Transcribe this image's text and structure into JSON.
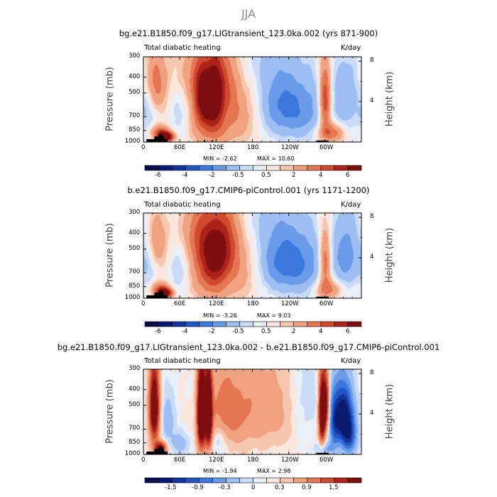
{
  "main_title": "JJA",
  "colors": {
    "scale": [
      "#0a1a6e",
      "#14349a",
      "#2256c4",
      "#3a78de",
      "#6a9be9",
      "#9cbef2",
      "#c9dbf6",
      "#e8eff9",
      "#fbe7dd",
      "#f7c6ae",
      "#f0a17f",
      "#e47652",
      "#cf4a2e",
      "#ad231b",
      "#7e0e10"
    ],
    "topography": "#000000",
    "frame": "#000000"
  },
  "chart_data": [
    {
      "type": "heatmap",
      "title": "bg.e21.B1850.f09_g17.LIGtransient_123.0ka.002 (yrs 871-900)",
      "left_subtitle": "Total diabatic heating",
      "right_subtitle": "K/day",
      "ylabel": "Pressure  (mb)",
      "y2label": "Height  (km)",
      "x_ticks": [
        "0",
        "60E",
        "120E",
        "180",
        "120W",
        "60W"
      ],
      "x_tick_lons": [
        0,
        60,
        120,
        180,
        240,
        300
      ],
      "xlim": [
        0,
        360
      ],
      "y_ticks": [
        "300",
        "400",
        "500",
        "700",
        "850",
        "1000"
      ],
      "y_tick_values": [
        300,
        400,
        500,
        700,
        850,
        1000
      ],
      "ylim": [
        1000,
        300
      ],
      "y2_ticks": [
        "8",
        "4"
      ],
      "y2_tick_values_km": [
        8,
        4
      ],
      "min_text": "MIN =    -2.62",
      "max_text": "MAX =     10.60",
      "levels": [
        -6,
        -5,
        -4,
        -3,
        -2,
        -1,
        -0.5,
        0,
        0.5,
        1,
        2,
        3,
        4,
        5,
        6
      ],
      "colorbar_labels": [
        "-6",
        "-4",
        "-2",
        "-0.5",
        "0.5",
        "2",
        "4",
        "6"
      ],
      "colorbar_label_levels": [
        -6,
        -4,
        -2,
        -0.5,
        0.5,
        2,
        4,
        6
      ],
      "features": [
        {
          "lon": 37,
          "p": 930,
          "amp": 7,
          "sx": 9,
          "sy": 45
        },
        {
          "lon": 27,
          "p": 870,
          "amp": 3,
          "sx": 10,
          "sy": 60
        },
        {
          "lon": 20,
          "p": 430,
          "amp": 2.5,
          "sx": 14,
          "sy": 140
        },
        {
          "lon": 100,
          "p": 520,
          "amp": 5.5,
          "sx": 12,
          "sy": 160
        },
        {
          "lon": 120,
          "p": 480,
          "amp": 4.5,
          "sx": 10,
          "sy": 180
        },
        {
          "lon": 112,
          "p": 800,
          "amp": 2.5,
          "sx": 22,
          "sy": 180
        },
        {
          "lon": 140,
          "p": 430,
          "amp": 2,
          "sx": 14,
          "sy": 160
        },
        {
          "lon": 80,
          "p": 380,
          "amp": 1.6,
          "sx": 20,
          "sy": 120
        },
        {
          "lon": 160,
          "p": 700,
          "amp": 1.5,
          "sx": 20,
          "sy": 200
        },
        {
          "lon": 300,
          "p": 560,
          "amp": 4.5,
          "sx": 7,
          "sy": 190
        },
        {
          "lon": 310,
          "p": 880,
          "amp": 3,
          "sx": 15,
          "sy": 80
        },
        {
          "lon": 225,
          "p": 580,
          "amp": -2.4,
          "sx": 24,
          "sy": 200
        },
        {
          "lon": 265,
          "p": 640,
          "amp": -2.2,
          "sx": 28,
          "sy": 210
        },
        {
          "lon": 335,
          "p": 530,
          "amp": -1.8,
          "sx": 16,
          "sy": 200
        },
        {
          "lon": 7,
          "p": 620,
          "amp": -1.2,
          "sx": 9,
          "sy": 170
        },
        {
          "lon": 60,
          "p": 620,
          "amp": -0.8,
          "sx": 12,
          "sy": 200
        },
        {
          "lon": 195,
          "p": 330,
          "amp": -0.6,
          "sx": 25,
          "sy": 70
        }
      ],
      "topography": [
        {
          "lon0": 5,
          "lon1": 40,
          "p_top": 960
        },
        {
          "lon0": 18,
          "lon1": 34,
          "p_top": 925
        },
        {
          "lon0": 25,
          "lon1": 32,
          "p_top": 900
        },
        {
          "lon0": 100,
          "lon1": 102,
          "p_top": 970
        },
        {
          "lon0": 113,
          "lon1": 115,
          "p_top": 970
        },
        {
          "lon0": 286,
          "lon1": 306,
          "p_top": 978
        }
      ]
    },
    {
      "type": "heatmap",
      "title": "b.e21.B1850.f09_g17.CMIP6-piControl.001 (yrs 1171-1200)",
      "left_subtitle": "Total diabatic heating",
      "right_subtitle": "K/day",
      "ylabel": "Pressure  (mb)",
      "y2label": "Height  (km)",
      "x_ticks": [
        "0",
        "60E",
        "120E",
        "180",
        "120W",
        "60W"
      ],
      "x_tick_lons": [
        0,
        60,
        120,
        180,
        240,
        300
      ],
      "xlim": [
        0,
        360
      ],
      "y_ticks": [
        "300",
        "400",
        "500",
        "700",
        "850",
        "1000"
      ],
      "y_tick_values": [
        300,
        400,
        500,
        700,
        850,
        1000
      ],
      "ylim": [
        1000,
        300
      ],
      "y2_ticks": [
        "8",
        "4"
      ],
      "y2_tick_values_km": [
        8,
        4
      ],
      "min_text": "MIN =    -3.26",
      "max_text": "MAX =     9.03",
      "levels": [
        -6,
        -5,
        -4,
        -3,
        -2,
        -1,
        -0.5,
        0,
        0.5,
        1,
        2,
        3,
        4,
        5,
        6
      ],
      "colorbar_labels": [
        "-6",
        "-4",
        "-2",
        "-0.5",
        "0.5",
        "2",
        "4",
        "6"
      ],
      "colorbar_label_levels": [
        -6,
        -4,
        -2,
        -0.5,
        0.5,
        2,
        4,
        6
      ],
      "features": [
        {
          "lon": 35,
          "p": 930,
          "amp": 6.5,
          "sx": 9,
          "sy": 45
        },
        {
          "lon": 27,
          "p": 870,
          "amp": 2.5,
          "sx": 10,
          "sy": 60
        },
        {
          "lon": 22,
          "p": 450,
          "amp": 1.8,
          "sx": 13,
          "sy": 130
        },
        {
          "lon": 105,
          "p": 500,
          "amp": 3.5,
          "sx": 18,
          "sy": 180
        },
        {
          "lon": 125,
          "p": 500,
          "amp": 3.2,
          "sx": 14,
          "sy": 180
        },
        {
          "lon": 112,
          "p": 800,
          "amp": 2,
          "sx": 22,
          "sy": 180
        },
        {
          "lon": 145,
          "p": 430,
          "amp": 1.8,
          "sx": 14,
          "sy": 160
        },
        {
          "lon": 80,
          "p": 380,
          "amp": 1.4,
          "sx": 20,
          "sy": 120
        },
        {
          "lon": 160,
          "p": 700,
          "amp": 1.3,
          "sx": 20,
          "sy": 200
        },
        {
          "lon": 300,
          "p": 600,
          "amp": 3.5,
          "sx": 7,
          "sy": 180
        },
        {
          "lon": 305,
          "p": 880,
          "amp": 2.5,
          "sx": 15,
          "sy": 80
        },
        {
          "lon": 225,
          "p": 580,
          "amp": -2.8,
          "sx": 24,
          "sy": 200
        },
        {
          "lon": 265,
          "p": 620,
          "amp": -2.4,
          "sx": 26,
          "sy": 210
        },
        {
          "lon": 335,
          "p": 540,
          "amp": -2.6,
          "sx": 16,
          "sy": 190
        },
        {
          "lon": 8,
          "p": 620,
          "amp": -1,
          "sx": 9,
          "sy": 170
        },
        {
          "lon": 60,
          "p": 640,
          "amp": -1,
          "sx": 12,
          "sy": 200
        },
        {
          "lon": 195,
          "p": 330,
          "amp": -0.6,
          "sx": 25,
          "sy": 70
        }
      ],
      "topography": [
        {
          "lon0": 5,
          "lon1": 40,
          "p_top": 960
        },
        {
          "lon0": 18,
          "lon1": 34,
          "p_top": 925
        },
        {
          "lon0": 25,
          "lon1": 32,
          "p_top": 900
        },
        {
          "lon0": 100,
          "lon1": 102,
          "p_top": 970
        },
        {
          "lon0": 113,
          "lon1": 115,
          "p_top": 970
        },
        {
          "lon0": 286,
          "lon1": 306,
          "p_top": 978
        }
      ]
    },
    {
      "type": "heatmap",
      "title": "bg.e21.B1850.f09_g17.LIGtransient_123.0ka.002 - b.e21.B1850.f09_g17.CMIP6-piControl.001",
      "left_subtitle": "Total diabatic heating",
      "right_subtitle": "K/day",
      "ylabel": "Pressure  (mb)",
      "y2label": "Height  (km)",
      "x_ticks": [
        "0",
        "60E",
        "120E",
        "180",
        "120W",
        "60W"
      ],
      "x_tick_lons": [
        0,
        60,
        120,
        180,
        240,
        300
      ],
      "xlim": [
        0,
        360
      ],
      "y_ticks": [
        "300",
        "400",
        "500",
        "700",
        "850",
        "1000"
      ],
      "y_tick_values": [
        300,
        400,
        500,
        700,
        850,
        1000
      ],
      "ylim": [
        1000,
        300
      ],
      "y2_ticks": [
        "8",
        "4"
      ],
      "y2_tick_values_km": [
        8,
        4
      ],
      "min_text": "MIN =    -1.94",
      "max_text": "MAX =     2.98",
      "levels": [
        -1.8,
        -1.5,
        -1.2,
        -0.9,
        -0.6,
        -0.3,
        -0.1,
        0,
        0.1,
        0.3,
        0.6,
        0.9,
        1.2,
        1.5,
        1.8
      ],
      "colorbar_labels": [
        "-1.5",
        "-0.9",
        "-0.3",
        "0",
        "0.3",
        "0.9",
        "1.5"
      ],
      "colorbar_label_levels": [
        -1.5,
        -0.9,
        -0.3,
        0,
        0.3,
        0.9,
        1.5
      ],
      "features": [
        {
          "lon": 18,
          "p": 520,
          "amp": 2.2,
          "sx": 6,
          "sy": 200
        },
        {
          "lon": 96,
          "p": 560,
          "amp": 2.8,
          "sx": 5,
          "sy": 230
        },
        {
          "lon": 108,
          "p": 560,
          "amp": 2.4,
          "sx": 4,
          "sy": 220
        },
        {
          "lon": 130,
          "p": 520,
          "amp": 0.6,
          "sx": 20,
          "sy": 220
        },
        {
          "lon": 165,
          "p": 550,
          "amp": 0.5,
          "sx": 25,
          "sy": 220
        },
        {
          "lon": 215,
          "p": 520,
          "amp": 0.4,
          "sx": 25,
          "sy": 220
        },
        {
          "lon": 28,
          "p": 920,
          "amp": 1.8,
          "sx": 7,
          "sy": 60
        },
        {
          "lon": 60,
          "p": 860,
          "amp": -0.5,
          "sx": 10,
          "sy": 90
        },
        {
          "lon": 40,
          "p": 620,
          "amp": -0.5,
          "sx": 8,
          "sy": 150
        },
        {
          "lon": 125,
          "p": 800,
          "amp": -0.4,
          "sx": 9,
          "sy": 120
        },
        {
          "lon": 295,
          "p": 560,
          "amp": 2.2,
          "sx": 4,
          "sy": 200
        },
        {
          "lon": 302,
          "p": 480,
          "amp": 1.4,
          "sx": 4,
          "sy": 150
        },
        {
          "lon": 330,
          "p": 570,
          "amp": -2.1,
          "sx": 11,
          "sy": 170
        },
        {
          "lon": 340,
          "p": 780,
          "amp": -1.2,
          "sx": 9,
          "sy": 150
        },
        {
          "lon": 315,
          "p": 660,
          "amp": -0.9,
          "sx": 6,
          "sy": 200
        },
        {
          "lon": 300,
          "p": 930,
          "amp": -0.6,
          "sx": 10,
          "sy": 70
        },
        {
          "lon": 268,
          "p": 450,
          "amp": -0.2,
          "sx": 20,
          "sy": 200
        }
      ],
      "topography": [
        {
          "lon0": 5,
          "lon1": 40,
          "p_top": 960
        },
        {
          "lon0": 18,
          "lon1": 34,
          "p_top": 925
        },
        {
          "lon0": 25,
          "lon1": 32,
          "p_top": 900
        },
        {
          "lon0": 100,
          "lon1": 102,
          "p_top": 970
        },
        {
          "lon0": 113,
          "lon1": 115,
          "p_top": 970
        },
        {
          "lon0": 286,
          "lon1": 306,
          "p_top": 978
        }
      ]
    }
  ]
}
